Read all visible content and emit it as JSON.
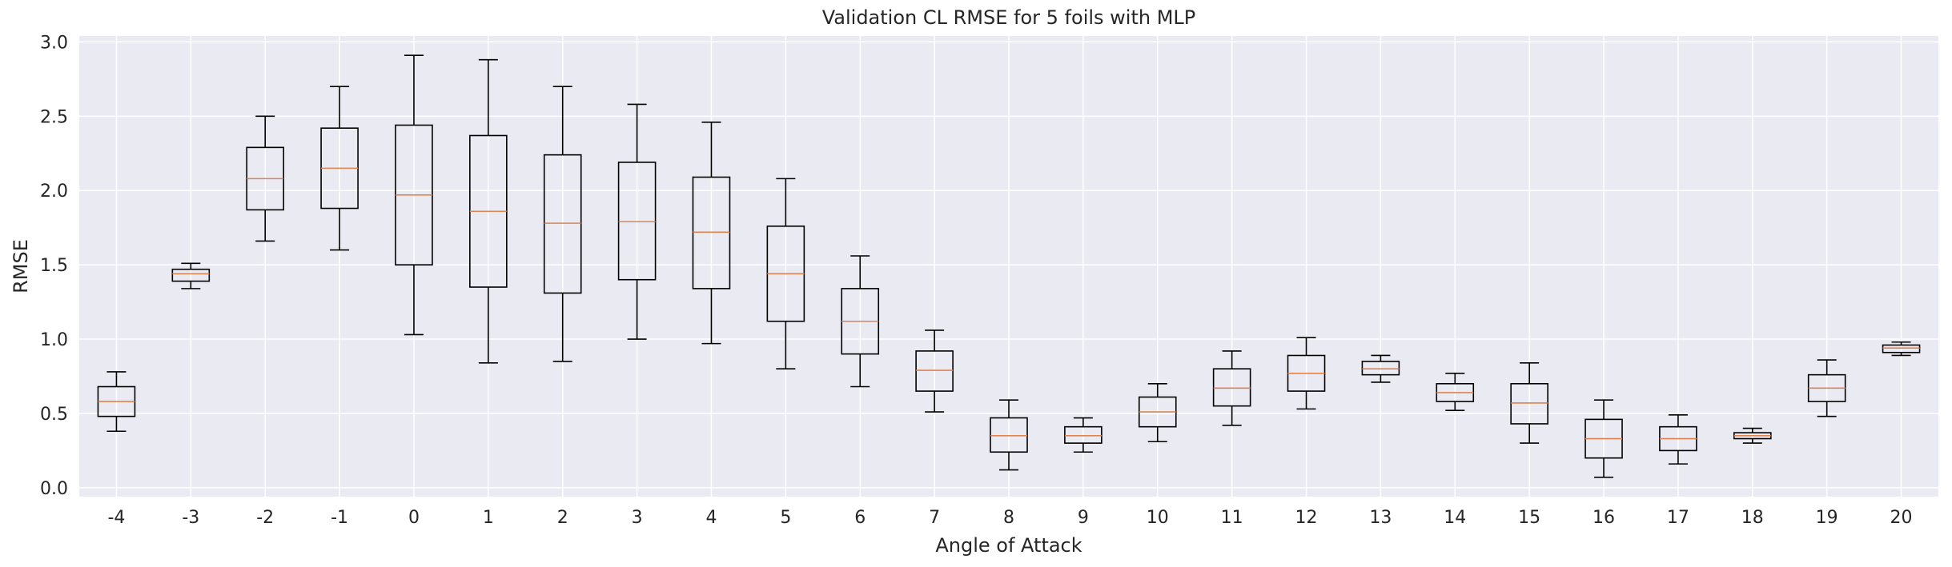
{
  "chart_data": {
    "type": "box",
    "title": "Validation CL RMSE for 5 foils with MLP",
    "xlabel": "Angle of Attack",
    "ylabel": "RMSE",
    "ylim": [
      -0.06,
      3.04
    ],
    "yticks": [
      0.0,
      0.5,
      1.0,
      1.5,
      2.0,
      2.5,
      3.0
    ],
    "ytick_labels": [
      "0.0",
      "0.5",
      "1.0",
      "1.5",
      "2.0",
      "2.5",
      "3.0"
    ],
    "grid": true,
    "categories": [
      "-4",
      "-3",
      "-2",
      "-1",
      "0",
      "1",
      "2",
      "3",
      "4",
      "5",
      "6",
      "7",
      "8",
      "9",
      "10",
      "11",
      "12",
      "13",
      "14",
      "15",
      "16",
      "17",
      "18",
      "19",
      "20"
    ],
    "boxes": [
      {
        "whislo": 0.38,
        "q1": 0.48,
        "med": 0.58,
        "q3": 0.68,
        "whishi": 0.78
      },
      {
        "whislo": 1.34,
        "q1": 1.39,
        "med": 1.44,
        "q3": 1.47,
        "whishi": 1.51
      },
      {
        "whislo": 1.66,
        "q1": 1.87,
        "med": 2.08,
        "q3": 2.29,
        "whishi": 2.5
      },
      {
        "whislo": 1.6,
        "q1": 1.88,
        "med": 2.15,
        "q3": 2.42,
        "whishi": 2.7
      },
      {
        "whislo": 1.03,
        "q1": 1.5,
        "med": 1.97,
        "q3": 2.44,
        "whishi": 2.91
      },
      {
        "whislo": 0.84,
        "q1": 1.35,
        "med": 1.86,
        "q3": 2.37,
        "whishi": 2.88
      },
      {
        "whislo": 0.85,
        "q1": 1.31,
        "med": 1.78,
        "q3": 2.24,
        "whishi": 2.7
      },
      {
        "whislo": 1.0,
        "q1": 1.4,
        "med": 1.79,
        "q3": 2.19,
        "whishi": 2.58
      },
      {
        "whislo": 0.97,
        "q1": 1.34,
        "med": 1.72,
        "q3": 2.09,
        "whishi": 2.46
      },
      {
        "whislo": 0.8,
        "q1": 1.12,
        "med": 1.44,
        "q3": 1.76,
        "whishi": 2.08
      },
      {
        "whislo": 0.68,
        "q1": 0.9,
        "med": 1.12,
        "q3": 1.34,
        "whishi": 1.56
      },
      {
        "whislo": 0.51,
        "q1": 0.65,
        "med": 0.79,
        "q3": 0.92,
        "whishi": 1.06
      },
      {
        "whislo": 0.12,
        "q1": 0.24,
        "med": 0.35,
        "q3": 0.47,
        "whishi": 0.59
      },
      {
        "whislo": 0.24,
        "q1": 0.3,
        "med": 0.35,
        "q3": 0.41,
        "whishi": 0.47
      },
      {
        "whislo": 0.31,
        "q1": 0.41,
        "med": 0.51,
        "q3": 0.61,
        "whishi": 0.7
      },
      {
        "whislo": 0.42,
        "q1": 0.55,
        "med": 0.67,
        "q3": 0.8,
        "whishi": 0.92
      },
      {
        "whislo": 0.53,
        "q1": 0.65,
        "med": 0.77,
        "q3": 0.89,
        "whishi": 1.01
      },
      {
        "whislo": 0.71,
        "q1": 0.76,
        "med": 0.8,
        "q3": 0.85,
        "whishi": 0.89
      },
      {
        "whislo": 0.52,
        "q1": 0.58,
        "med": 0.64,
        "q3": 0.7,
        "whishi": 0.77
      },
      {
        "whislo": 0.3,
        "q1": 0.43,
        "med": 0.57,
        "q3": 0.7,
        "whishi": 0.84
      },
      {
        "whislo": 0.07,
        "q1": 0.2,
        "med": 0.33,
        "q3": 0.46,
        "whishi": 0.59
      },
      {
        "whislo": 0.16,
        "q1": 0.25,
        "med": 0.33,
        "q3": 0.41,
        "whishi": 0.49
      },
      {
        "whislo": 0.3,
        "q1": 0.33,
        "med": 0.35,
        "q3": 0.37,
        "whishi": 0.4
      },
      {
        "whislo": 0.48,
        "q1": 0.58,
        "med": 0.67,
        "q3": 0.76,
        "whishi": 0.86
      },
      {
        "whislo": 0.89,
        "q1": 0.91,
        "med": 0.94,
        "q3": 0.96,
        "whishi": 0.98
      }
    ],
    "colors": {
      "plot_background": "#eaeaf2",
      "grid": "#ffffff",
      "box": "#000000",
      "median": "#dd8452",
      "text": "#262626"
    }
  }
}
